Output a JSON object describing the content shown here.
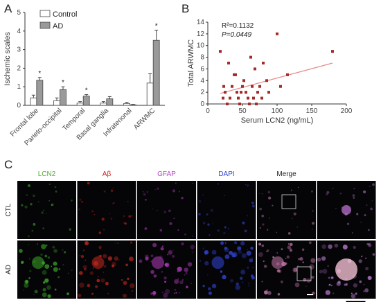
{
  "panels": {
    "a": "A",
    "b": "B",
    "c": "C"
  },
  "chart_data": [
    {
      "type": "bar",
      "ylabel": "Ischemic scales",
      "ylim": [
        0,
        5
      ],
      "yticks": [
        0,
        1,
        2,
        3,
        4,
        5
      ],
      "categories": [
        "Frontal lobe",
        "Parieto-occipital",
        "Temporal",
        "Basal ganglia",
        "Infratenonal",
        "ARWMC"
      ],
      "series": [
        {
          "name": "Control",
          "color": "#ffffff",
          "values": [
            0.4,
            0.25,
            0.12,
            0.12,
            0.1,
            1.2
          ],
          "errors": [
            0.15,
            0.15,
            0.08,
            0.08,
            0.06,
            0.5
          ]
        },
        {
          "name": "AD",
          "color": "#9a9a9a",
          "values": [
            1.35,
            0.85,
            0.5,
            0.35,
            0.03,
            3.5
          ],
          "errors": [
            0.15,
            0.15,
            0.08,
            0.12,
            0.02,
            0.55
          ]
        }
      ],
      "significance": [
        "*",
        "*",
        "*",
        "",
        "",
        "*"
      ],
      "legend": "top-left"
    },
    {
      "type": "scatter",
      "xlabel": "Serum LCN2 (ng/mL)",
      "ylabel": "Total ARWMC",
      "xlim": [
        0,
        200
      ],
      "ylim": [
        0,
        14
      ],
      "xticks": [
        0,
        50,
        100,
        150,
        200
      ],
      "yticks": [
        0,
        2,
        4,
        6,
        8,
        10,
        12,
        14
      ],
      "annotation_r2": "R²=0.1132",
      "annotation_p": "P=0.0449",
      "points": [
        [
          18,
          9
        ],
        [
          22,
          1
        ],
        [
          23,
          3
        ],
        [
          25,
          2
        ],
        [
          28,
          0
        ],
        [
          30,
          7
        ],
        [
          32,
          1
        ],
        [
          35,
          3
        ],
        [
          38,
          5
        ],
        [
          40,
          5
        ],
        [
          42,
          2
        ],
        [
          44,
          1
        ],
        [
          46,
          0
        ],
        [
          48,
          2
        ],
        [
          50,
          3
        ],
        [
          52,
          4
        ],
        [
          55,
          2
        ],
        [
          58,
          1
        ],
        [
          60,
          0
        ],
        [
          62,
          8
        ],
        [
          64,
          3
        ],
        [
          66,
          1
        ],
        [
          68,
          6
        ],
        [
          70,
          0
        ],
        [
          72,
          2
        ],
        [
          75,
          3
        ],
        [
          78,
          1
        ],
        [
          80,
          7
        ],
        [
          85,
          4
        ],
        [
          88,
          2
        ],
        [
          100,
          12
        ],
        [
          105,
          3
        ],
        [
          115,
          5
        ],
        [
          180,
          9
        ]
      ],
      "fit_line": {
        "x": [
          18,
          180
        ],
        "y": [
          1.8,
          7.0
        ]
      },
      "point_color": "#a52a2a",
      "line_color": "#e88888"
    }
  ],
  "microscopy": {
    "channels": [
      {
        "label": "LCN2",
        "color": "#55aa33"
      },
      {
        "label": "Aβ",
        "color": "#cc2222"
      },
      {
        "label": "GFAP",
        "color": "#bb44cc"
      },
      {
        "label": "DAPI",
        "color": "#3344cc"
      },
      {
        "label": "Merge",
        "color": "#222222"
      },
      {
        "label": "",
        "color": "#222222"
      }
    ],
    "rows": [
      "CTL",
      "AD"
    ]
  }
}
